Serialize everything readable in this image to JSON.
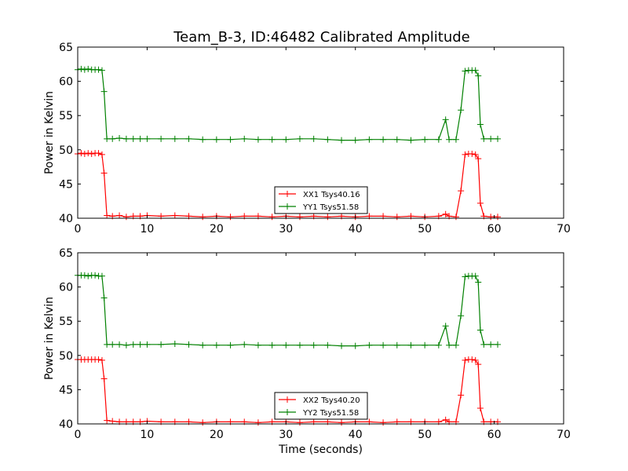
{
  "chart_data": [
    {
      "type": "line",
      "title": "Team_B-3, ID:46482 Calibrated Amplitude",
      "xlabel": "",
      "ylabel": "Power in Kelvin",
      "xlim": [
        0,
        70
      ],
      "ylim": [
        40,
        65
      ],
      "x_ticks": [
        "0",
        "10",
        "20",
        "30",
        "40",
        "50",
        "60",
        "70"
      ],
      "y_ticks": [
        "40",
        "45",
        "50",
        "55",
        "60",
        "65"
      ],
      "grid": false,
      "legend_position": "lower-center",
      "series": [
        {
          "name": "XX1 Tsys40.16",
          "color": "#ff0000",
          "marker": "plus",
          "points": [
            [
              0,
              49.4
            ],
            [
              0.5,
              49.5
            ],
            [
              1,
              49.4
            ],
            [
              1.5,
              49.5
            ],
            [
              2,
              49.4
            ],
            [
              2.5,
              49.5
            ],
            [
              3,
              49.5
            ],
            [
              3.5,
              49.3
            ],
            [
              3.8,
              46.6
            ],
            [
              4.2,
              40.4
            ],
            [
              5,
              40.3
            ],
            [
              6,
              40.4
            ],
            [
              7,
              40.2
            ],
            [
              8,
              40.3
            ],
            [
              9,
              40.3
            ],
            [
              10,
              40.4
            ],
            [
              12,
              40.3
            ],
            [
              14,
              40.4
            ],
            [
              16,
              40.3
            ],
            [
              18,
              40.2
            ],
            [
              20,
              40.3
            ],
            [
              22,
              40.2
            ],
            [
              24,
              40.3
            ],
            [
              26,
              40.3
            ],
            [
              28,
              40.2
            ],
            [
              30,
              40.3
            ],
            [
              32,
              40.2
            ],
            [
              34,
              40.3
            ],
            [
              36,
              40.2
            ],
            [
              38,
              40.3
            ],
            [
              40,
              40.2
            ],
            [
              42,
              40.3
            ],
            [
              44,
              40.3
            ],
            [
              46,
              40.2
            ],
            [
              48,
              40.3
            ],
            [
              50,
              40.2
            ],
            [
              52,
              40.3
            ],
            [
              53,
              40.6
            ],
            [
              53.5,
              40.3
            ],
            [
              54.5,
              40.2
            ],
            [
              55.2,
              44.0
            ],
            [
              55.8,
              49.3
            ],
            [
              56.3,
              49.4
            ],
            [
              56.8,
              49.4
            ],
            [
              57.3,
              49.3
            ],
            [
              57.7,
              48.7
            ],
            [
              58,
              42.2
            ],
            [
              58.5,
              40.3
            ],
            [
              59.5,
              40.2
            ],
            [
              60.5,
              40.2
            ]
          ]
        },
        {
          "name": "YY1 Tsys51.58",
          "color": "#008000",
          "marker": "plus",
          "points": [
            [
              0,
              61.7
            ],
            [
              0.5,
              61.8
            ],
            [
              1,
              61.7
            ],
            [
              1.5,
              61.8
            ],
            [
              2,
              61.7
            ],
            [
              2.5,
              61.7
            ],
            [
              3,
              61.7
            ],
            [
              3.5,
              61.6
            ],
            [
              3.8,
              58.5
            ],
            [
              4.2,
              51.6
            ],
            [
              5,
              51.6
            ],
            [
              6,
              51.7
            ],
            [
              7,
              51.6
            ],
            [
              8,
              51.6
            ],
            [
              9,
              51.6
            ],
            [
              10,
              51.6
            ],
            [
              12,
              51.6
            ],
            [
              14,
              51.6
            ],
            [
              16,
              51.6
            ],
            [
              18,
              51.5
            ],
            [
              20,
              51.5
            ],
            [
              22,
              51.5
            ],
            [
              24,
              51.6
            ],
            [
              26,
              51.5
            ],
            [
              28,
              51.5
            ],
            [
              30,
              51.5
            ],
            [
              32,
              51.6
            ],
            [
              34,
              51.6
            ],
            [
              36,
              51.5
            ],
            [
              38,
              51.4
            ],
            [
              40,
              51.4
            ],
            [
              42,
              51.5
            ],
            [
              44,
              51.5
            ],
            [
              46,
              51.5
            ],
            [
              48,
              51.4
            ],
            [
              50,
              51.5
            ],
            [
              52,
              51.5
            ],
            [
              53,
              54.4
            ],
            [
              53.5,
              51.5
            ],
            [
              54.5,
              51.5
            ],
            [
              55.2,
              55.8
            ],
            [
              55.8,
              61.5
            ],
            [
              56.3,
              61.6
            ],
            [
              56.8,
              61.6
            ],
            [
              57.3,
              61.6
            ],
            [
              57.7,
              60.8
            ],
            [
              58,
              53.7
            ],
            [
              58.5,
              51.6
            ],
            [
              59.5,
              51.6
            ],
            [
              60.5,
              51.6
            ]
          ]
        }
      ]
    },
    {
      "type": "line",
      "title": "",
      "xlabel": "Time (seconds)",
      "ylabel": "Power in Kelvin",
      "xlim": [
        0,
        70
      ],
      "ylim": [
        40,
        65
      ],
      "x_ticks": [
        "0",
        "10",
        "20",
        "30",
        "40",
        "50",
        "60",
        "70"
      ],
      "y_ticks": [
        "40",
        "45",
        "50",
        "55",
        "60",
        "65"
      ],
      "grid": false,
      "legend_position": "lower-center",
      "series": [
        {
          "name": "XX2 Tsys40.20",
          "color": "#ff0000",
          "marker": "plus",
          "points": [
            [
              0,
              49.4
            ],
            [
              0.5,
              49.4
            ],
            [
              1,
              49.4
            ],
            [
              1.5,
              49.4
            ],
            [
              2,
              49.4
            ],
            [
              2.5,
              49.4
            ],
            [
              3,
              49.4
            ],
            [
              3.5,
              49.3
            ],
            [
              3.8,
              46.6
            ],
            [
              4.2,
              40.5
            ],
            [
              5,
              40.4
            ],
            [
              6,
              40.3
            ],
            [
              7,
              40.3
            ],
            [
              8,
              40.3
            ],
            [
              9,
              40.3
            ],
            [
              10,
              40.4
            ],
            [
              12,
              40.3
            ],
            [
              14,
              40.3
            ],
            [
              16,
              40.3
            ],
            [
              18,
              40.2
            ],
            [
              20,
              40.3
            ],
            [
              22,
              40.3
            ],
            [
              24,
              40.3
            ],
            [
              26,
              40.2
            ],
            [
              28,
              40.3
            ],
            [
              30,
              40.3
            ],
            [
              32,
              40.2
            ],
            [
              34,
              40.3
            ],
            [
              36,
              40.3
            ],
            [
              38,
              40.2
            ],
            [
              40,
              40.3
            ],
            [
              42,
              40.3
            ],
            [
              44,
              40.2
            ],
            [
              46,
              40.3
            ],
            [
              48,
              40.3
            ],
            [
              50,
              40.3
            ],
            [
              52,
              40.3
            ],
            [
              53,
              40.6
            ],
            [
              53.5,
              40.3
            ],
            [
              54.5,
              40.3
            ],
            [
              55.2,
              44.2
            ],
            [
              55.8,
              49.3
            ],
            [
              56.3,
              49.4
            ],
            [
              56.8,
              49.4
            ],
            [
              57.3,
              49.3
            ],
            [
              57.7,
              48.7
            ],
            [
              58,
              42.3
            ],
            [
              58.5,
              40.3
            ],
            [
              59.5,
              40.3
            ],
            [
              60.5,
              40.3
            ]
          ]
        },
        {
          "name": "YY2 Tsys51.58",
          "color": "#008000",
          "marker": "plus",
          "points": [
            [
              0,
              61.7
            ],
            [
              0.5,
              61.7
            ],
            [
              1,
              61.7
            ],
            [
              1.5,
              61.6
            ],
            [
              2,
              61.7
            ],
            [
              2.5,
              61.7
            ],
            [
              3,
              61.6
            ],
            [
              3.5,
              61.6
            ],
            [
              3.8,
              58.4
            ],
            [
              4.2,
              51.6
            ],
            [
              5,
              51.6
            ],
            [
              6,
              51.6
            ],
            [
              7,
              51.5
            ],
            [
              8,
              51.6
            ],
            [
              9,
              51.6
            ],
            [
              10,
              51.6
            ],
            [
              12,
              51.6
            ],
            [
              14,
              51.7
            ],
            [
              16,
              51.6
            ],
            [
              18,
              51.5
            ],
            [
              20,
              51.5
            ],
            [
              22,
              51.5
            ],
            [
              24,
              51.6
            ],
            [
              26,
              51.5
            ],
            [
              28,
              51.5
            ],
            [
              30,
              51.5
            ],
            [
              32,
              51.5
            ],
            [
              34,
              51.5
            ],
            [
              36,
              51.5
            ],
            [
              38,
              51.4
            ],
            [
              40,
              51.4
            ],
            [
              42,
              51.5
            ],
            [
              44,
              51.5
            ],
            [
              46,
              51.5
            ],
            [
              48,
              51.5
            ],
            [
              50,
              51.5
            ],
            [
              52,
              51.5
            ],
            [
              53,
              54.3
            ],
            [
              53.5,
              51.5
            ],
            [
              54.5,
              51.5
            ],
            [
              55.2,
              55.8
            ],
            [
              55.8,
              61.5
            ],
            [
              56.3,
              61.6
            ],
            [
              56.8,
              61.6
            ],
            [
              57.3,
              61.6
            ],
            [
              57.7,
              60.7
            ],
            [
              58,
              53.7
            ],
            [
              58.5,
              51.6
            ],
            [
              59.5,
              51.6
            ],
            [
              60.5,
              51.6
            ]
          ]
        }
      ]
    }
  ]
}
